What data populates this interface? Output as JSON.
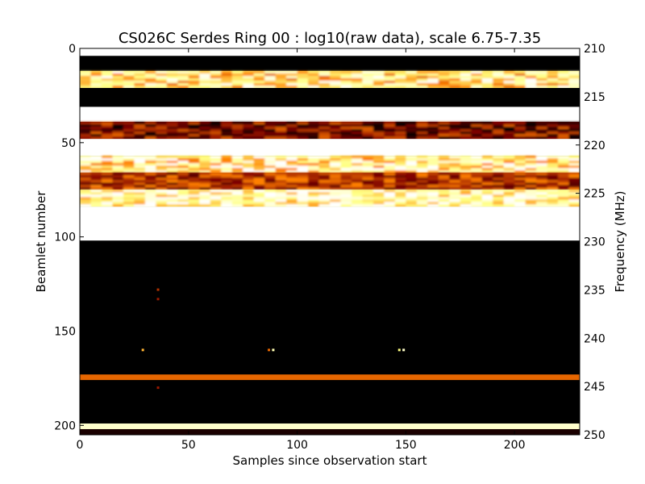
{
  "chart_data": {
    "type": "heatmap",
    "title": "CS026C Serdes Ring 00 : log10(raw data), scale 6.75-7.35",
    "xlabel": "Samples since observation start",
    "ylabel": "Beamlet number",
    "y2label": "Frequency (MHz)",
    "xlim": [
      0,
      230
    ],
    "ylim": [
      205,
      0
    ],
    "y2lim": [
      250,
      210
    ],
    "xticks": [
      0,
      50,
      100,
      150,
      200
    ],
    "xtick_labels": [
      "0",
      "50",
      "100",
      "150",
      "200"
    ],
    "yticks": [
      0,
      50,
      100,
      150,
      200
    ],
    "ytick_labels": [
      "0",
      "50",
      "100",
      "150",
      "200"
    ],
    "y2ticks": [
      210,
      215,
      220,
      225,
      230,
      235,
      240,
      245,
      250
    ],
    "y2tick_labels": [
      "210",
      "215",
      "220",
      "225",
      "230",
      "235",
      "240",
      "245",
      "250"
    ],
    "colormap": "afmhot",
    "color_scale": [
      6.75,
      7.35
    ],
    "bands": [
      {
        "y0": 0,
        "y1": 4,
        "level": 1.0
      },
      {
        "y0": 4,
        "y1": 12,
        "level": 0.0
      },
      {
        "y0": 12,
        "y1": 21,
        "level": 0.72,
        "texture": 0.55
      },
      {
        "y0": 21,
        "y1": 31,
        "level": 0.0
      },
      {
        "y0": 31,
        "y1": 39,
        "level": 1.0
      },
      {
        "y0": 39,
        "y1": 48,
        "level": 0.22,
        "texture": 0.45
      },
      {
        "y0": 48,
        "y1": 57,
        "level": 1.0
      },
      {
        "y0": 57,
        "y1": 66,
        "level": 0.78,
        "texture": 0.6
      },
      {
        "y0": 66,
        "y1": 75,
        "level": 0.35,
        "texture": 0.35
      },
      {
        "y0": 75,
        "y1": 84,
        "level": 0.82,
        "texture": 0.5
      },
      {
        "y0": 84,
        "y1": 102,
        "level": 1.0
      },
      {
        "y0": 102,
        "y1": 173,
        "level": 0.0
      },
      {
        "y0": 173,
        "y1": 176,
        "level": 0.45
      },
      {
        "y0": 176,
        "y1": 199,
        "level": 0.0
      },
      {
        "y0": 199,
        "y1": 202,
        "level": 0.9
      },
      {
        "y0": 202,
        "y1": 205,
        "level": 0.05
      }
    ],
    "hot_pixels": [
      {
        "x": 36,
        "y": 128,
        "level": 0.35
      },
      {
        "x": 36,
        "y": 133,
        "level": 0.3
      },
      {
        "x": 29,
        "y": 160,
        "level": 0.6
      },
      {
        "x": 87,
        "y": 160,
        "level": 0.45
      },
      {
        "x": 89,
        "y": 160,
        "level": 0.85
      },
      {
        "x": 147,
        "y": 160,
        "level": 0.75
      },
      {
        "x": 149,
        "y": 160,
        "level": 0.9
      },
      {
        "x": 36,
        "y": 180,
        "level": 0.3
      }
    ],
    "grid": false
  }
}
